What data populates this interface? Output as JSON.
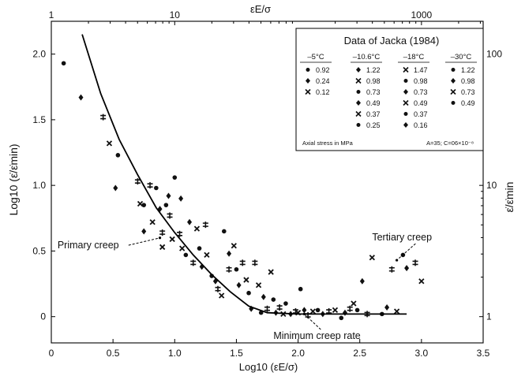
{
  "chart_data": {
    "type": "scatter",
    "title": "",
    "xlabel": "Log10 (εE/σ)",
    "ylabel": "Log10 (ε̇/ε̇min)",
    "top_axis_label": "εE/σ",
    "right_axis_label": "ε̇/ε̇min",
    "xlim": [
      0,
      3.5
    ],
    "ylim": [
      -0.2,
      2.25
    ],
    "x_ticks": [
      "0",
      "0.5",
      "1.0",
      "1.5",
      "2.0",
      "2.5",
      "3.0",
      "3.5"
    ],
    "y_ticks": [
      "0",
      "0.5",
      "1.0",
      "1.5",
      "2.0"
    ],
    "top_ticks": [
      {
        "label": "1",
        "x": 0
      },
      {
        "label": "10",
        "x": 1
      },
      {
        "label": "1000",
        "x": 3
      }
    ],
    "right_ticks": [
      {
        "label": "1",
        "y": 0
      },
      {
        "label": "10",
        "y": 1
      },
      {
        "label": "100",
        "y": 2
      }
    ],
    "annotations": [
      {
        "text": "Primary creep",
        "x": 0.05,
        "y": 0.52,
        "arrow_to": [
          0.88,
          0.6
        ]
      },
      {
        "text": "Tertiary creep",
        "x": 2.6,
        "y": 0.58,
        "arrow_to": [
          2.8,
          0.43
        ]
      },
      {
        "text": "Minimum creep rate",
        "x": 1.8,
        "y": -0.17,
        "arrow_to": [
          2.05,
          0.02
        ]
      }
    ],
    "fit_curve": [
      [
        0.25,
        2.15
      ],
      [
        0.4,
        1.7
      ],
      [
        0.55,
        1.35
      ],
      [
        0.7,
        1.08
      ],
      [
        0.85,
        0.83
      ],
      [
        1.0,
        0.64
      ],
      [
        1.15,
        0.47
      ],
      [
        1.3,
        0.32
      ],
      [
        1.45,
        0.19
      ],
      [
        1.6,
        0.08
      ],
      [
        1.75,
        0.03
      ],
      [
        2.0,
        0.02
      ],
      [
        2.3,
        0.02
      ],
      [
        2.6,
        0.02
      ],
      [
        2.88,
        0.02
      ]
    ],
    "legend": {
      "title": "Data of Jacka (1984)",
      "columns": [
        "–5°C",
        "–10.6°C",
        "–18°C",
        "–30°C"
      ],
      "rows": [
        [
          "0.92",
          "1.22",
          "1.47",
          "1.22"
        ],
        [
          "0.24",
          "0.98",
          "0.98",
          "0.98"
        ],
        [
          "0.12",
          "0.73",
          "0.73",
          "0.73"
        ],
        [
          "",
          "0.49",
          "0.49",
          "0.49"
        ],
        [
          "",
          "0.37",
          "0.37",
          ""
        ],
        [
          "",
          "0.25",
          "0.16",
          ""
        ]
      ],
      "footer_left": "Axial stress in MPa",
      "footer_right": "A=35; C=06×10⁻⁸"
    },
    "points": [
      [
        0.1,
        1.93
      ],
      [
        0.24,
        1.67
      ],
      [
        0.42,
        1.52
      ],
      [
        0.47,
        1.32
      ],
      [
        0.54,
        1.23
      ],
      [
        0.52,
        0.98
      ],
      [
        0.7,
        1.03
      ],
      [
        0.72,
        0.86
      ],
      [
        0.75,
        0.85
      ],
      [
        0.75,
        0.65
      ],
      [
        0.8,
        1.0
      ],
      [
        0.82,
        0.72
      ],
      [
        0.85,
        0.98
      ],
      [
        0.88,
        0.82
      ],
      [
        0.9,
        0.64
      ],
      [
        0.9,
        0.53
      ],
      [
        0.93,
        0.85
      ],
      [
        0.95,
        0.92
      ],
      [
        0.96,
        0.77
      ],
      [
        0.98,
        0.59
      ],
      [
        1.0,
        1.06
      ],
      [
        1.05,
        0.9
      ],
      [
        1.04,
        0.63
      ],
      [
        1.06,
        0.52
      ],
      [
        1.09,
        0.47
      ],
      [
        1.12,
        0.72
      ],
      [
        1.15,
        0.41
      ],
      [
        1.18,
        0.67
      ],
      [
        1.2,
        0.52
      ],
      [
        1.22,
        0.38
      ],
      [
        1.25,
        0.7
      ],
      [
        1.26,
        0.47
      ],
      [
        1.3,
        0.31
      ],
      [
        1.33,
        0.27
      ],
      [
        1.35,
        0.21
      ],
      [
        1.38,
        0.16
      ],
      [
        1.4,
        0.65
      ],
      [
        1.44,
        0.48
      ],
      [
        1.44,
        0.36
      ],
      [
        1.48,
        0.54
      ],
      [
        1.5,
        0.36
      ],
      [
        1.52,
        0.24
      ],
      [
        1.55,
        0.41
      ],
      [
        1.58,
        0.28
      ],
      [
        1.6,
        0.18
      ],
      [
        1.62,
        0.06
      ],
      [
        1.65,
        0.41
      ],
      [
        1.68,
        0.24
      ],
      [
        1.7,
        0.03
      ],
      [
        1.72,
        0.15
      ],
      [
        1.75,
        0.06
      ],
      [
        1.78,
        0.34
      ],
      [
        1.8,
        0.13
      ],
      [
        1.82,
        0.03
      ],
      [
        1.85,
        0.07
      ],
      [
        1.88,
        0.02
      ],
      [
        1.9,
        0.1
      ],
      [
        1.94,
        0.02
      ],
      [
        1.98,
        0.04
      ],
      [
        2.0,
        0.03
      ],
      [
        2.02,
        0.21
      ],
      [
        2.05,
        0.05
      ],
      [
        2.08,
        0.01
      ],
      [
        2.12,
        0.04
      ],
      [
        2.16,
        0.05
      ],
      [
        2.2,
        0.02
      ],
      [
        2.25,
        0.04
      ],
      [
        2.3,
        0.05
      ],
      [
        2.35,
        -0.01
      ],
      [
        2.38,
        0.03
      ],
      [
        2.42,
        0.06
      ],
      [
        2.45,
        0.1
      ],
      [
        2.48,
        0.05
      ],
      [
        2.52,
        0.27
      ],
      [
        2.56,
        0.02
      ],
      [
        2.6,
        0.45
      ],
      [
        2.68,
        0.02
      ],
      [
        2.72,
        0.07
      ],
      [
        2.76,
        0.36
      ],
      [
        2.8,
        0.04
      ],
      [
        2.85,
        0.47
      ],
      [
        2.88,
        0.37
      ],
      [
        2.95,
        0.41
      ],
      [
        3.0,
        0.27
      ]
    ]
  }
}
